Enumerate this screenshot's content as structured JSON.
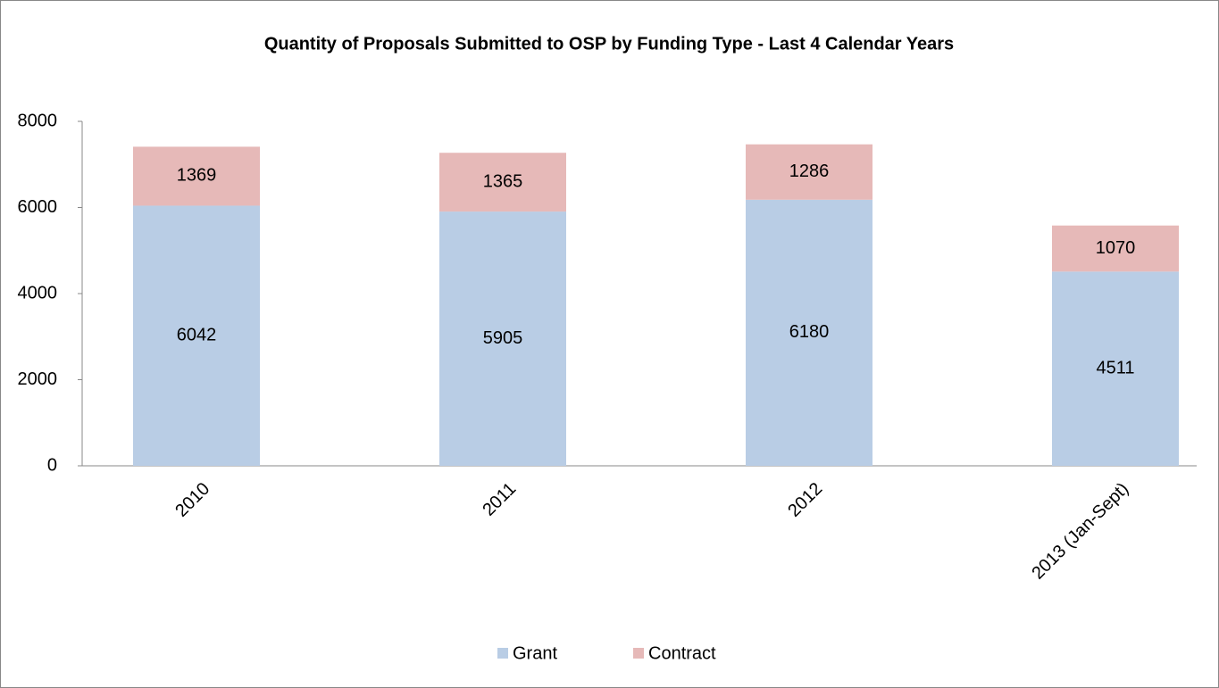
{
  "chart_data": {
    "type": "stacked_bar",
    "title": "Quantity of Proposals Submitted to OSP by Funding Type - Last 4 Calendar Years",
    "categories": [
      "2010",
      "2011",
      "2012",
      "2013 (Jan-Sept)"
    ],
    "series": [
      {
        "name": "Grant",
        "color": "#b9cde5",
        "values": [
          6042,
          5905,
          6180,
          4511
        ]
      },
      {
        "name": "Contract",
        "color": "#e6b9b8",
        "values": [
          1369,
          1365,
          1286,
          1070
        ]
      }
    ],
    "ylim": [
      0,
      8000
    ],
    "yticks": [
      0,
      2000,
      4000,
      6000,
      8000
    ],
    "legend": "bottom"
  }
}
